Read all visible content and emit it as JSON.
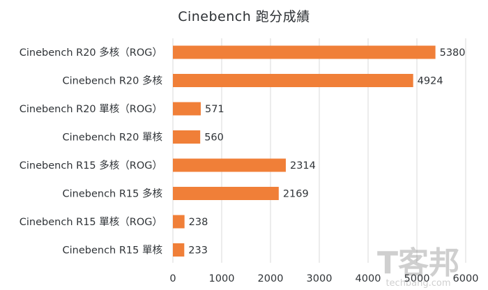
{
  "chart_data": {
    "type": "bar",
    "orientation": "horizontal",
    "title": "Cinebench 跑分成績",
    "categories": [
      "Cinebench R20 多核（ROG）",
      "Cinebench R20 多核",
      "Cinebench R20 單核（ROG）",
      "Cinebench R20 單核",
      "Cinebench R15 多核（ROG）",
      "Cinebench R15 多核",
      "Cinebench R15 單核（ROG）",
      "Cinebench R15 單核"
    ],
    "values": [
      5380,
      4924,
      571,
      560,
      2314,
      2169,
      238,
      233
    ],
    "xlim": [
      0,
      6000
    ],
    "xticks": [
      0,
      1000,
      2000,
      3000,
      4000,
      5000,
      6000
    ],
    "grid": true,
    "bar_color": "#f07f38",
    "data_labels": true
  },
  "watermark": {
    "logo_text": "T客邦",
    "site": "techbang.com"
  }
}
